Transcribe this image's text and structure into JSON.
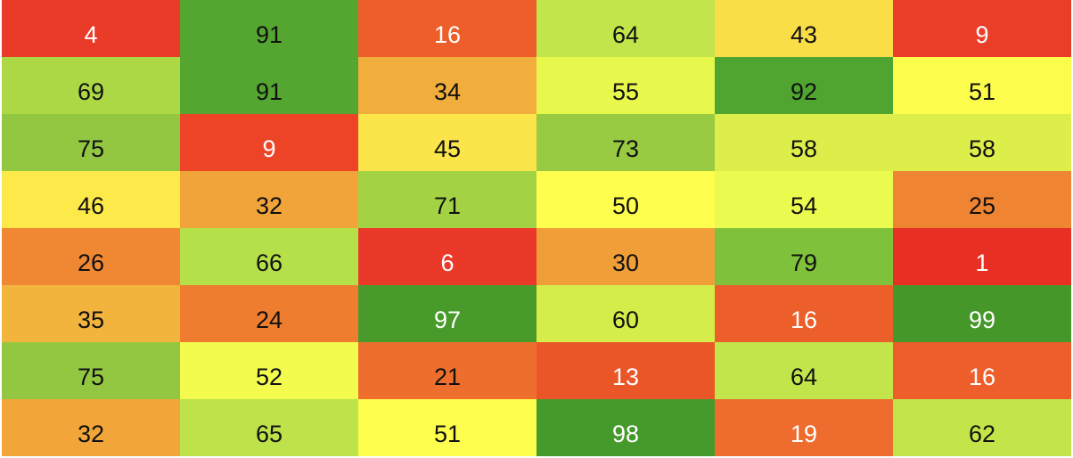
{
  "grid": {
    "rows": [
      [
        4,
        91,
        16,
        64,
        43,
        9
      ],
      [
        69,
        91,
        34,
        55,
        92,
        51
      ],
      [
        75,
        9,
        45,
        73,
        58,
        58
      ],
      [
        46,
        32,
        71,
        50,
        54,
        25
      ],
      [
        26,
        66,
        6,
        30,
        79,
        1
      ],
      [
        35,
        24,
        97,
        60,
        16,
        99
      ],
      [
        75,
        52,
        21,
        13,
        64,
        16
      ],
      [
        32,
        65,
        51,
        98,
        19,
        62
      ]
    ],
    "colors": [
      [
        "#ea3a28",
        "#54a631",
        "#ed5e2b",
        "#c1e54a",
        "#f9de47",
        "#eb3e28"
      ],
      [
        "#acd846",
        "#54a631",
        "#f2ae3d",
        "#e7f74c",
        "#4fa52f",
        "#fcfc4d"
      ],
      [
        "#93c742",
        "#ed4428",
        "#fbe54a",
        "#98ca42",
        "#dded4a",
        "#dded4a"
      ],
      [
        "#fee94b",
        "#f0a43a",
        "#a3d344",
        "#fefe4e",
        "#ebfa4e",
        "#ef8432"
      ],
      [
        "#ef8733",
        "#b6e049",
        "#ea3928",
        "#f09f38",
        "#7fc13b",
        "#e72f23"
      ],
      [
        "#f3b43d",
        "#ee7d2f",
        "#489a2b",
        "#d6ec4a",
        "#ec5f2b",
        "#45972a"
      ],
      [
        "#93c742",
        "#f3fc4e",
        "#ee6f2d",
        "#eb5628",
        "#c1e54a",
        "#ed5e2b"
      ],
      [
        "#f2a63a",
        "#bde24a",
        "#fefe4e",
        "#469a2b",
        "#ee6c2d",
        "#c3e54a"
      ]
    ],
    "text_colors": [
      [
        "#ffffff",
        "#111111",
        "#ffffff",
        "#111111",
        "#111111",
        "#ffffff"
      ],
      [
        "#111111",
        "#111111",
        "#111111",
        "#111111",
        "#111111",
        "#111111"
      ],
      [
        "#111111",
        "#ffffff",
        "#111111",
        "#111111",
        "#111111",
        "#111111"
      ],
      [
        "#111111",
        "#111111",
        "#111111",
        "#111111",
        "#111111",
        "#111111"
      ],
      [
        "#111111",
        "#111111",
        "#ffffff",
        "#111111",
        "#111111",
        "#ffffff"
      ],
      [
        "#111111",
        "#111111",
        "#ffffff",
        "#111111",
        "#ffffff",
        "#ffffff"
      ],
      [
        "#111111",
        "#111111",
        "#111111",
        "#ffffff",
        "#111111",
        "#ffffff"
      ],
      [
        "#111111",
        "#111111",
        "#111111",
        "#ffffff",
        "#ffffff",
        "#111111"
      ]
    ]
  }
}
